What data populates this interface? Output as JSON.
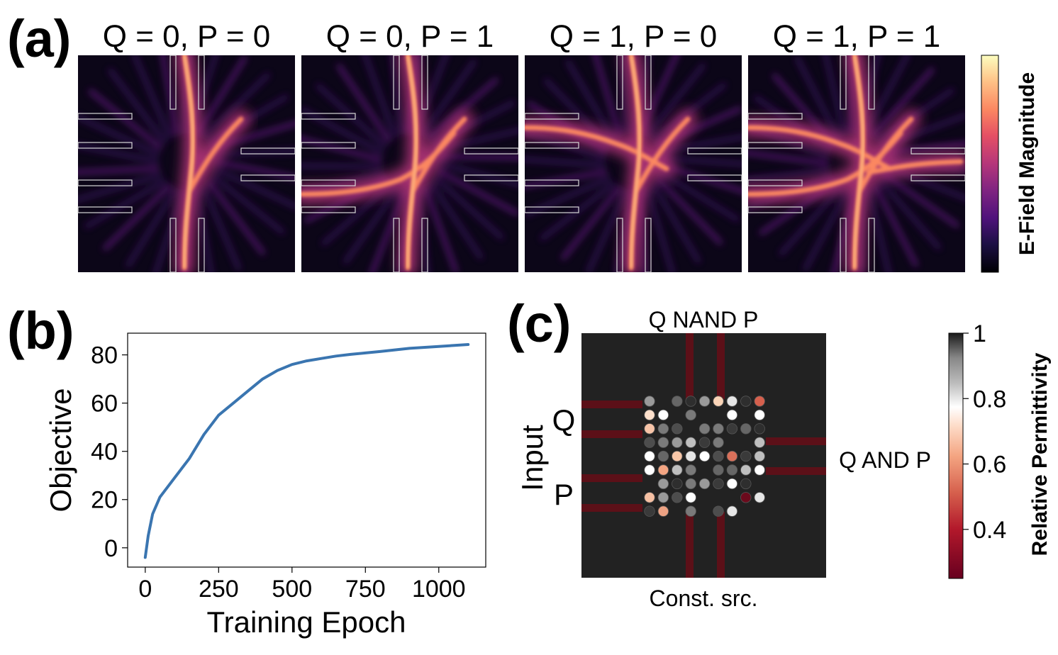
{
  "chart_data": [
    {
      "type": "heatmap",
      "panel_label": "(a)",
      "panels": [
        {
          "title": "Q = 0, P = 0",
          "active_input_ports": [],
          "active_output_ports": []
        },
        {
          "title": "Q = 0, P = 1",
          "active_input_ports": [
            "P"
          ],
          "active_output_ports": []
        },
        {
          "title": "Q = 1, P = 0",
          "active_input_ports": [
            "Q"
          ],
          "active_output_ports": []
        },
        {
          "title": "Q = 1, P = 1",
          "active_input_ports": [
            "Q",
            "P"
          ],
          "active_output_ports": [
            "Q AND P"
          ]
        }
      ],
      "colorbar": {
        "label": "E-Field Magnitude",
        "colormap": "magma"
      }
    },
    {
      "type": "line",
      "panel_label": "(b)",
      "xlabel": "Training Epoch",
      "ylabel": "Objective",
      "xlim": [
        -60,
        1160
      ],
      "ylim": [
        -8,
        89
      ],
      "xticks": [
        0,
        250,
        500,
        750,
        1000
      ],
      "yticks": [
        0,
        20,
        40,
        60,
        80
      ],
      "grid": false,
      "series": [
        {
          "color": "#3a75b0",
          "x": [
            0,
            10,
            25,
            50,
            100,
            150,
            200,
            250,
            300,
            350,
            400,
            450,
            500,
            550,
            600,
            650,
            700,
            750,
            800,
            900,
            1000,
            1100
          ],
          "y": [
            -4,
            5,
            14,
            21,
            29,
            37,
            47,
            55,
            60,
            65,
            70,
            73.5,
            76,
            77.5,
            78.5,
            79.5,
            80.2,
            80.8,
            81.4,
            82.7,
            83.5,
            84.3
          ]
        }
      ]
    },
    {
      "type": "heatmap",
      "panel_label": "(c)",
      "labels": {
        "top": "Q NAND P",
        "right": "Q AND P",
        "bottom": "Const. src.",
        "left_group": "Input",
        "input_q": "Q",
        "input_p": "P"
      },
      "colorbar": {
        "label": "Relative Permittivity",
        "ticks": [
          "1",
          "0.8",
          "0.6",
          "0.4"
        ],
        "tick_values": [
          1,
          0.8,
          0.6,
          0.4
        ],
        "range": [
          0.25,
          1.0
        ]
      },
      "grid": {
        "cols": 9,
        "rows": 9
      }
    }
  ]
}
